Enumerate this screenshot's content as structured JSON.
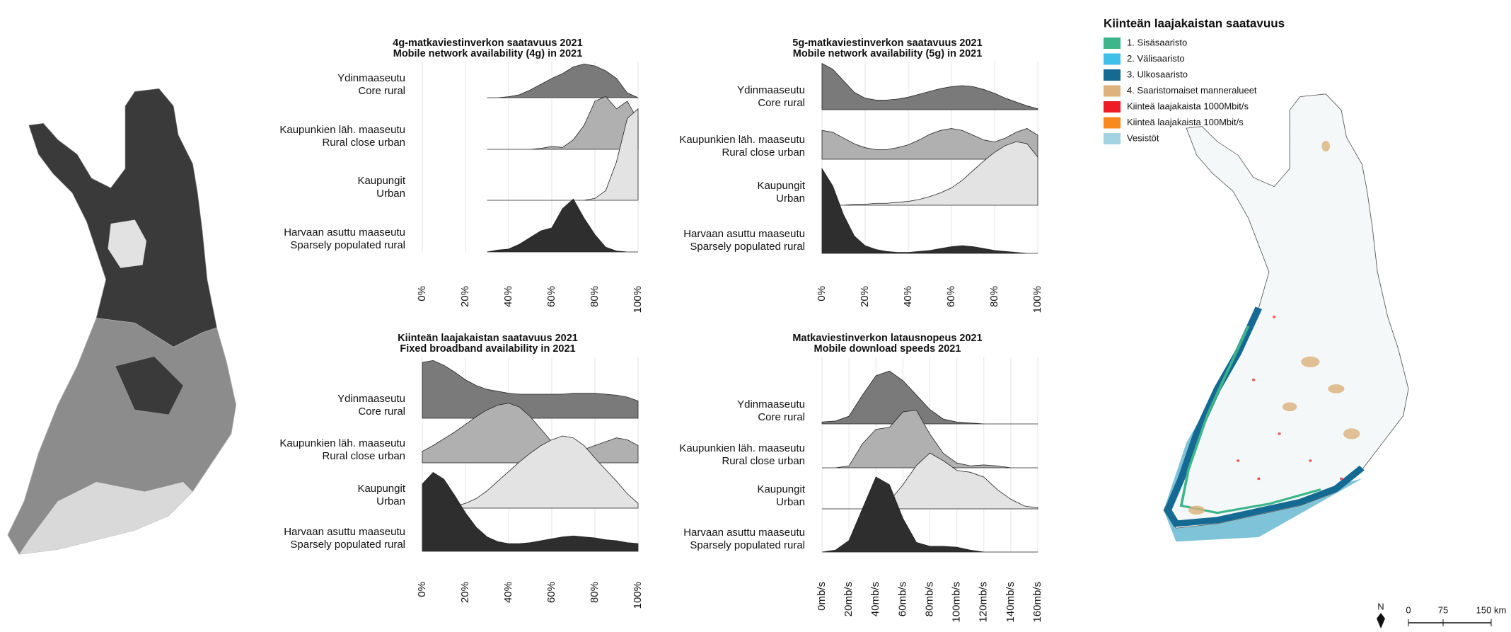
{
  "chart_data": [
    {
      "type": "ridgeline",
      "title": "4g-matkaviestinverkon saatavuus 2021",
      "subtitle": "Mobile network availability (4g) in 2021",
      "x": [
        0,
        5,
        10,
        15,
        20,
        25,
        30,
        35,
        40,
        45,
        50,
        55,
        60,
        65,
        70,
        75,
        80,
        85,
        90,
        95,
        100
      ],
      "xlim": [
        0,
        100
      ],
      "xticks": [
        {
          "value": 0,
          "label": "0%"
        },
        {
          "value": 20,
          "label": "20%"
        },
        {
          "value": 40,
          "label": "40%"
        },
        {
          "value": 60,
          "label": "60%"
        },
        {
          "value": 80,
          "label": "80%"
        },
        {
          "value": 100,
          "label": "100%"
        }
      ],
      "grid": true,
      "series": [
        {
          "name": "Ydinmaaseutu",
          "name_en": "Core rural",
          "color": "#7a7a7a",
          "values": [
            null,
            null,
            null,
            null,
            null,
            null,
            0,
            0,
            1,
            3,
            8,
            14,
            20,
            25,
            32,
            35,
            33,
            28,
            20,
            5,
            0
          ]
        },
        {
          "name": "Kaupunkien läh. maaseutu",
          "name_en": "Rural close urban",
          "color": "#b0b0b0",
          "values": [
            null,
            null,
            null,
            null,
            null,
            null,
            0,
            0,
            0,
            0,
            0,
            1,
            3,
            2,
            10,
            25,
            50,
            55,
            42,
            50,
            30
          ]
        },
        {
          "name": "Kaupungit",
          "name_en": "Urban",
          "color": "#e3e3e3",
          "values": [
            null,
            null,
            null,
            null,
            null,
            null,
            0,
            0,
            0,
            0,
            0,
            0,
            0,
            0,
            0,
            0,
            2,
            10,
            40,
            85,
            95
          ]
        },
        {
          "name": "Harvaan asuttu maaseutu",
          "name_en": "Sparsely populated rural",
          "color": "#2e2e2e",
          "values": [
            null,
            null,
            null,
            null,
            null,
            null,
            0,
            2,
            3,
            8,
            15,
            22,
            25,
            45,
            55,
            35,
            18,
            5,
            1,
            0,
            0
          ]
        }
      ]
    },
    {
      "type": "ridgeline",
      "title": "5g-matkaviestinverkon saatavuus 2021",
      "subtitle": "Mobile network availability (5g) in 2021",
      "x": [
        0,
        5,
        10,
        15,
        20,
        25,
        30,
        35,
        40,
        45,
        50,
        55,
        60,
        65,
        70,
        75,
        80,
        85,
        90,
        95,
        100
      ],
      "xlim": [
        0,
        100
      ],
      "xticks": [
        {
          "value": 0,
          "label": "0%"
        },
        {
          "value": 20,
          "label": "20%"
        },
        {
          "value": 40,
          "label": "40%"
        },
        {
          "value": 60,
          "label": "60%"
        },
        {
          "value": 80,
          "label": "80%"
        },
        {
          "value": 100,
          "label": "100%"
        }
      ],
      "grid": true,
      "series": [
        {
          "name": "Ydinmaaseutu",
          "name_en": "Core rural",
          "color": "#7a7a7a",
          "values": [
            48,
            42,
            30,
            18,
            12,
            10,
            10,
            11,
            13,
            16,
            19,
            22,
            24,
            25,
            24,
            21,
            17,
            12,
            8,
            4,
            1
          ]
        },
        {
          "name": "Kaupunkien läh. maaseutu",
          "name_en": "Rural close urban",
          "color": "#b0b0b0",
          "values": [
            30,
            28,
            22,
            16,
            12,
            10,
            10,
            12,
            15,
            20,
            26,
            30,
            32,
            30,
            25,
            20,
            18,
            22,
            28,
            32,
            25
          ]
        },
        {
          "name": "Kaupungit",
          "name_en": "Urban",
          "color": "#e3e3e3",
          "values": [
            0,
            0,
            0,
            1,
            1,
            2,
            2,
            3,
            4,
            6,
            9,
            13,
            18,
            26,
            36,
            46,
            55,
            62,
            66,
            64,
            50
          ]
        },
        {
          "name": "Harvaan asuttu maaseutu",
          "name_en": "Sparsely populated rural",
          "color": "#2e2e2e",
          "values": [
            88,
            70,
            40,
            18,
            8,
            4,
            2,
            1,
            1,
            2,
            3,
            5,
            7,
            8,
            7,
            5,
            3,
            2,
            1,
            0,
            0
          ]
        }
      ]
    },
    {
      "type": "ridgeline",
      "title": "Kiinteän laajakaistan saatavuus 2021",
      "subtitle": "Fixed broadband availability in 2021",
      "x": [
        0,
        5,
        10,
        15,
        20,
        25,
        30,
        35,
        40,
        45,
        50,
        55,
        60,
        65,
        70,
        75,
        80,
        85,
        90,
        95,
        100
      ],
      "xlim": [
        0,
        100
      ],
      "xticks": [
        {
          "value": 0,
          "label": "0%"
        },
        {
          "value": 20,
          "label": "20%"
        },
        {
          "value": 40,
          "label": "40%"
        },
        {
          "value": 60,
          "label": "60%"
        },
        {
          "value": 80,
          "label": "80%"
        },
        {
          "value": 100,
          "label": "100%"
        }
      ],
      "grid": true,
      "series": [
        {
          "name": "Ydinmaaseutu",
          "name_en": "Core rural",
          "color": "#7a7a7a",
          "values": [
            58,
            60,
            55,
            48,
            40,
            34,
            30,
            28,
            26,
            25,
            25,
            25,
            25,
            25,
            26,
            26,
            26,
            25,
            24,
            22,
            18
          ]
        },
        {
          "name": "Kaupunkien läh. maaseutu",
          "name_en": "Rural close urban",
          "color": "#b0b0b0",
          "values": [
            12,
            18,
            25,
            32,
            40,
            48,
            55,
            60,
            62,
            58,
            48,
            35,
            22,
            14,
            12,
            14,
            18,
            22,
            26,
            24,
            18
          ]
        },
        {
          "name": "Kaupungit",
          "name_en": "Urban",
          "color": "#e3e3e3",
          "values": [
            0,
            0,
            1,
            2,
            5,
            10,
            18,
            28,
            38,
            48,
            57,
            65,
            71,
            75,
            73,
            65,
            52,
            40,
            28,
            15,
            5
          ]
        },
        {
          "name": "Harvaan asuttu maaseutu",
          "name_en": "Sparsely populated rural",
          "color": "#2e2e2e",
          "values": [
            70,
            82,
            75,
            58,
            40,
            25,
            15,
            10,
            8,
            8,
            9,
            11,
            13,
            15,
            16,
            15,
            14,
            12,
            11,
            9,
            8
          ]
        }
      ]
    },
    {
      "type": "ridgeline",
      "title": "Matkaviestinverkon latausnopeus 2021",
      "subtitle": "Mobile download speeds 2021",
      "x": [
        0,
        10,
        20,
        30,
        40,
        50,
        60,
        70,
        80,
        90,
        100,
        110,
        120,
        130,
        140,
        150,
        160
      ],
      "xlim": [
        0,
        160
      ],
      "xticks": [
        {
          "value": 0,
          "label": "0mb/s"
        },
        {
          "value": 20,
          "label": "20mb/s"
        },
        {
          "value": 40,
          "label": "40mb/s"
        },
        {
          "value": 60,
          "label": "60mb/s"
        },
        {
          "value": 80,
          "label": "80mb/s"
        },
        {
          "value": 100,
          "label": "100mb/s"
        },
        {
          "value": 120,
          "label": "120mb/s"
        },
        {
          "value": 140,
          "label": "140mb/s"
        },
        {
          "value": 160,
          "label": "160mb/s"
        }
      ],
      "grid": true,
      "series": [
        {
          "name": "Ydinmaaseutu",
          "name_en": "Core rural",
          "color": "#7a7a7a",
          "values": [
            2,
            3,
            8,
            30,
            50,
            55,
            45,
            30,
            15,
            5,
            2,
            1,
            0,
            0,
            0,
            0,
            0
          ]
        },
        {
          "name": "Kaupunkien läh. maaseutu",
          "name_en": "Rural close urban",
          "color": "#b0b0b0",
          "values": [
            0,
            0,
            2,
            25,
            40,
            42,
            58,
            60,
            35,
            15,
            5,
            2,
            3,
            2,
            0,
            0,
            0
          ]
        },
        {
          "name": "Kaupungit",
          "name_en": "Urban",
          "color": "#e3e3e3",
          "values": [
            0,
            0,
            0,
            0,
            1,
            8,
            25,
            45,
            58,
            50,
            40,
            38,
            33,
            20,
            10,
            3,
            1
          ]
        },
        {
          "name": "Harvaan asuttu maaseutu",
          "name_en": "Sparsely populated rural",
          "color": "#2e2e2e",
          "values": [
            0,
            2,
            12,
            45,
            78,
            70,
            35,
            10,
            6,
            6,
            5,
            2,
            0,
            0,
            0,
            0,
            0
          ]
        }
      ]
    }
  ],
  "map_legend": {
    "title": "Kiinteän laajakaistan saatavuus",
    "items": [
      {
        "label": "1. Sisäsaaristo",
        "color": "#3cb68a"
      },
      {
        "label": "2. Välisaaristo",
        "color": "#3ec0ea"
      },
      {
        "label": "3. Ulkosaaristo",
        "color": "#156a94"
      },
      {
        "label": "4. Saaristomaiset manneralueet",
        "color": "#ddb27c"
      },
      {
        "label": "Kiinteä laajakaista 1000Mbit/s",
        "color": "#ee1c24"
      },
      {
        "label": "Kiinteä laajakaista 100Mbit/s",
        "color": "#f7891f"
      },
      {
        "label": "Vesistöt",
        "color": "#a3d3e3"
      }
    ],
    "scale_labels": [
      "0",
      "75",
      "150 km"
    ],
    "north": "N"
  }
}
